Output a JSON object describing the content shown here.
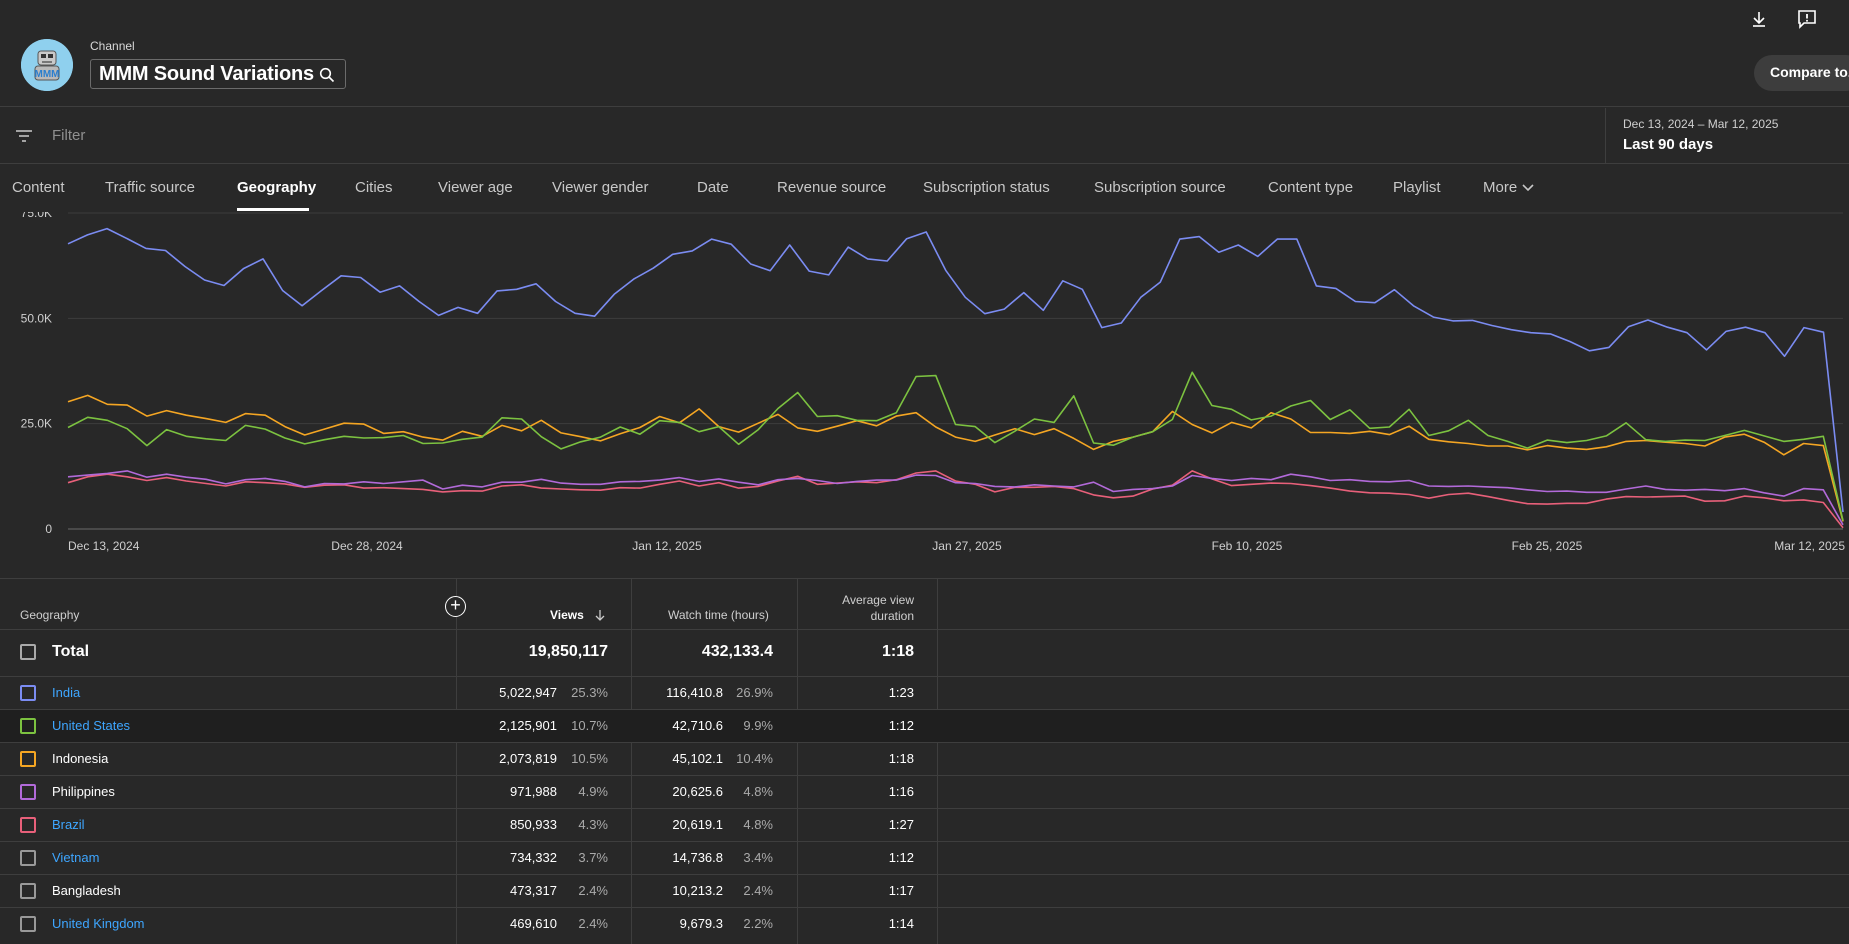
{
  "header": {
    "channel_label": "Channel",
    "channel_name": "MMM Sound Variations",
    "avatar_text": "MMM",
    "compare_button": "Compare to...",
    "icons": [
      "download-icon",
      "feedback-icon",
      "search-icon"
    ]
  },
  "filter": {
    "placeholder": "Filter",
    "date_range": "Dec 13, 2024 – Mar 12, 2025",
    "date_label": "Last 90 days"
  },
  "tabs": [
    {
      "label": "Content"
    },
    {
      "label": "Traffic source"
    },
    {
      "label": "Geography",
      "active": true
    },
    {
      "label": "Cities"
    },
    {
      "label": "Viewer age"
    },
    {
      "label": "Viewer gender"
    },
    {
      "label": "Date"
    },
    {
      "label": "Revenue source"
    },
    {
      "label": "Subscription status"
    },
    {
      "label": "Subscription source"
    },
    {
      "label": "Content type"
    },
    {
      "label": "Playlist"
    },
    {
      "label": "More"
    }
  ],
  "chart_data": {
    "type": "line",
    "x_ticks": [
      "Dec 13, 2024",
      "Dec 28, 2024",
      "Jan 12, 2025",
      "Jan 27, 2025",
      "Feb 10, 2025",
      "Feb 25, 2025",
      "Mar 12, 2025"
    ],
    "y_ticks": [
      "0",
      "25.0K",
      "50.0K",
      "75.0K"
    ],
    "ylim": [
      0,
      75000
    ],
    "grid": true,
    "legend": "table-checkboxes",
    "series": [
      {
        "name": "India",
        "color": "#7b8cf2",
        "values": [
          67700,
          69800,
          71300,
          69000,
          66600,
          66100,
          62300,
          59100,
          57800,
          61800,
          64100,
          56600,
          53000,
          56600,
          60100,
          59700,
          56200,
          57700,
          54000,
          50700,
          52600,
          51200,
          56500,
          56900,
          58200,
          54000,
          51200,
          50500,
          55700,
          59300,
          61900,
          65200,
          66000,
          68800,
          67600,
          62900,
          61300,
          67400,
          61200,
          60300,
          66900,
          64100,
          63600,
          68900,
          70500,
          61400,
          55000,
          51100,
          52200,
          56100,
          51900,
          58900,
          56900,
          47800,
          48900,
          55000,
          58600,
          68800,
          69400,
          65700,
          67400,
          64700,
          68800,
          68800,
          57700,
          57100,
          54000,
          53700,
          56800,
          52900,
          50300,
          49400,
          49500,
          48300,
          47300,
          46600,
          46300,
          44500,
          42300,
          43100,
          48000,
          49600,
          47900,
          46600,
          42500,
          46900,
          47900,
          46600,
          41000,
          47800,
          46700,
          4000
        ]
      },
      {
        "name": "United States",
        "color": "#7cc240",
        "values": [
          24100,
          26500,
          25800,
          23800,
          19800,
          23600,
          22000,
          21400,
          21000,
          24600,
          23700,
          21600,
          20200,
          21200,
          22000,
          21600,
          21700,
          22200,
          20300,
          20400,
          21300,
          21800,
          26400,
          26100,
          21900,
          19000,
          20700,
          21800,
          24200,
          22500,
          25700,
          25300,
          23100,
          24300,
          20100,
          23600,
          28600,
          32400,
          26700,
          26900,
          25800,
          25700,
          27600,
          36200,
          36400,
          24800,
          24300,
          20500,
          23200,
          26100,
          25300,
          31600,
          20400,
          19900,
          21800,
          23100,
          26000,
          37200,
          29300,
          28400,
          25900,
          26800,
          29200,
          30500,
          26000,
          28300,
          23900,
          24200,
          28400,
          22200,
          23300,
          25800,
          22200,
          20800,
          19200,
          21100,
          20500,
          21000,
          22100,
          25200,
          21200,
          20800,
          21100,
          21000,
          22200,
          23400,
          22100,
          20800,
          21300,
          22000,
          2000
        ]
      },
      {
        "name": "Indonesia",
        "color": "#f5a623",
        "values": [
          30200,
          31700,
          29600,
          29400,
          26800,
          28100,
          27000,
          26200,
          25300,
          27400,
          27000,
          24300,
          22300,
          23700,
          25100,
          24900,
          22700,
          23100,
          21800,
          21100,
          23200,
          22000,
          24600,
          23300,
          25800,
          22800,
          21900,
          20900,
          22600,
          24100,
          26700,
          25200,
          28500,
          24300,
          23000,
          25100,
          27200,
          24000,
          23200,
          24400,
          25700,
          24500,
          26800,
          27600,
          24200,
          21800,
          20800,
          22300,
          23800,
          22400,
          23800,
          21500,
          18900,
          20800,
          21800,
          23100,
          27900,
          24800,
          22800,
          25300,
          24000,
          27600,
          26100,
          22900,
          22900,
          22700,
          23200,
          22400,
          24400,
          21300,
          20700,
          20300,
          19700,
          19700,
          18800,
          19800,
          19200,
          18900,
          19500,
          20800,
          21000,
          20600,
          20300,
          19700,
          21800,
          22500,
          20600,
          17600,
          20300,
          19800,
          1800
        ]
      },
      {
        "name": "Philippines",
        "color": "#b26ad9",
        "values": [
          12400,
          12800,
          13200,
          13800,
          12300,
          13000,
          12300,
          11800,
          10700,
          11700,
          12000,
          11300,
          10000,
          10800,
          10700,
          11200,
          10800,
          11200,
          11600,
          9500,
          10400,
          10000,
          11100,
          11100,
          11800,
          10900,
          10600,
          10600,
          11200,
          11300,
          11600,
          12200,
          11300,
          11900,
          11100,
          10500,
          11700,
          12000,
          11500,
          10800,
          11300,
          11600,
          11600,
          12800,
          12700,
          11000,
          10800,
          10100,
          10000,
          10500,
          10200,
          10000,
          11100,
          8900,
          9400,
          9600,
          10200,
          12700,
          12000,
          11500,
          12000,
          11700,
          13000,
          12400,
          11500,
          11700,
          11300,
          11200,
          11500,
          10200,
          10100,
          10200,
          10000,
          9800,
          9300,
          8900,
          9000,
          8700,
          8700,
          9500,
          10200,
          9400,
          9200,
          9400,
          9100,
          9600,
          8600,
          7800,
          9600,
          9300,
          1000
        ]
      },
      {
        "name": "Brazil",
        "color": "#e8607a",
        "values": [
          11000,
          12400,
          13000,
          12400,
          11500,
          12200,
          11400,
          10800,
          10200,
          11200,
          11000,
          10700,
          9900,
          10400,
          10500,
          9700,
          9800,
          9600,
          9400,
          8800,
          9100,
          9000,
          10200,
          10500,
          9700,
          9500,
          9300,
          9200,
          9800,
          9700,
          10600,
          11400,
          10200,
          11000,
          9700,
          10100,
          11400,
          12500,
          10600,
          10900,
          11200,
          11000,
          11700,
          13300,
          13800,
          11400,
          10600,
          8800,
          9900,
          9900,
          10100,
          9600,
          8100,
          7400,
          7800,
          9500,
          10400,
          13800,
          11900,
          10300,
          10600,
          10900,
          10800,
          10300,
          9700,
          9000,
          8600,
          8500,
          8200,
          7300,
          8200,
          8500,
          7700,
          6800,
          6000,
          5900,
          6100,
          6100,
          7100,
          7700,
          7600,
          7700,
          7800,
          6600,
          6700,
          7800,
          7400,
          6700,
          6900,
          6300,
          300
        ]
      }
    ]
  },
  "table": {
    "headers": {
      "geography": "Geography",
      "views": "Views",
      "watch_time": "Watch time (hours)",
      "avg_duration": "Average view duration"
    },
    "total": {
      "label": "Total",
      "views": "19,850,117",
      "watch_time": "432,133.4",
      "avg_duration": "1:18"
    },
    "rows": [
      {
        "name": "India",
        "views": "5,022,947",
        "views_pct": "25.3%",
        "watch": "116,410.8",
        "watch_pct": "26.9%",
        "avg": "1:23",
        "color": "#7b8cf2",
        "link": true
      },
      {
        "name": "United States",
        "views": "2,125,901",
        "views_pct": "10.7%",
        "watch": "42,710.6",
        "watch_pct": "9.9%",
        "avg": "1:12",
        "color": "#7cc240",
        "link": true
      },
      {
        "name": "Indonesia",
        "views": "2,073,819",
        "views_pct": "10.5%",
        "watch": "45,102.1",
        "watch_pct": "10.4%",
        "avg": "1:18",
        "color": "#f5a623",
        "link": false
      },
      {
        "name": "Philippines",
        "views": "971,988",
        "views_pct": "4.9%",
        "watch": "20,625.6",
        "watch_pct": "4.8%",
        "avg": "1:16",
        "color": "#b26ad9",
        "link": false
      },
      {
        "name": "Brazil",
        "views": "850,933",
        "views_pct": "4.3%",
        "watch": "20,619.1",
        "watch_pct": "4.8%",
        "avg": "1:27",
        "color": "#e8607a",
        "link": true
      },
      {
        "name": "Vietnam",
        "views": "734,332",
        "views_pct": "3.7%",
        "watch": "14,736.8",
        "watch_pct": "3.4%",
        "avg": "1:12",
        "color": "#999999",
        "link": true
      },
      {
        "name": "Bangladesh",
        "views": "473,317",
        "views_pct": "2.4%",
        "watch": "10,213.2",
        "watch_pct": "2.4%",
        "avg": "1:17",
        "color": "#999999",
        "link": false
      },
      {
        "name": "United Kingdom",
        "views": "469,610",
        "views_pct": "2.4%",
        "watch": "9,679.3",
        "watch_pct": "2.2%",
        "avg": "1:14",
        "color": "#999999",
        "link": true
      }
    ]
  }
}
